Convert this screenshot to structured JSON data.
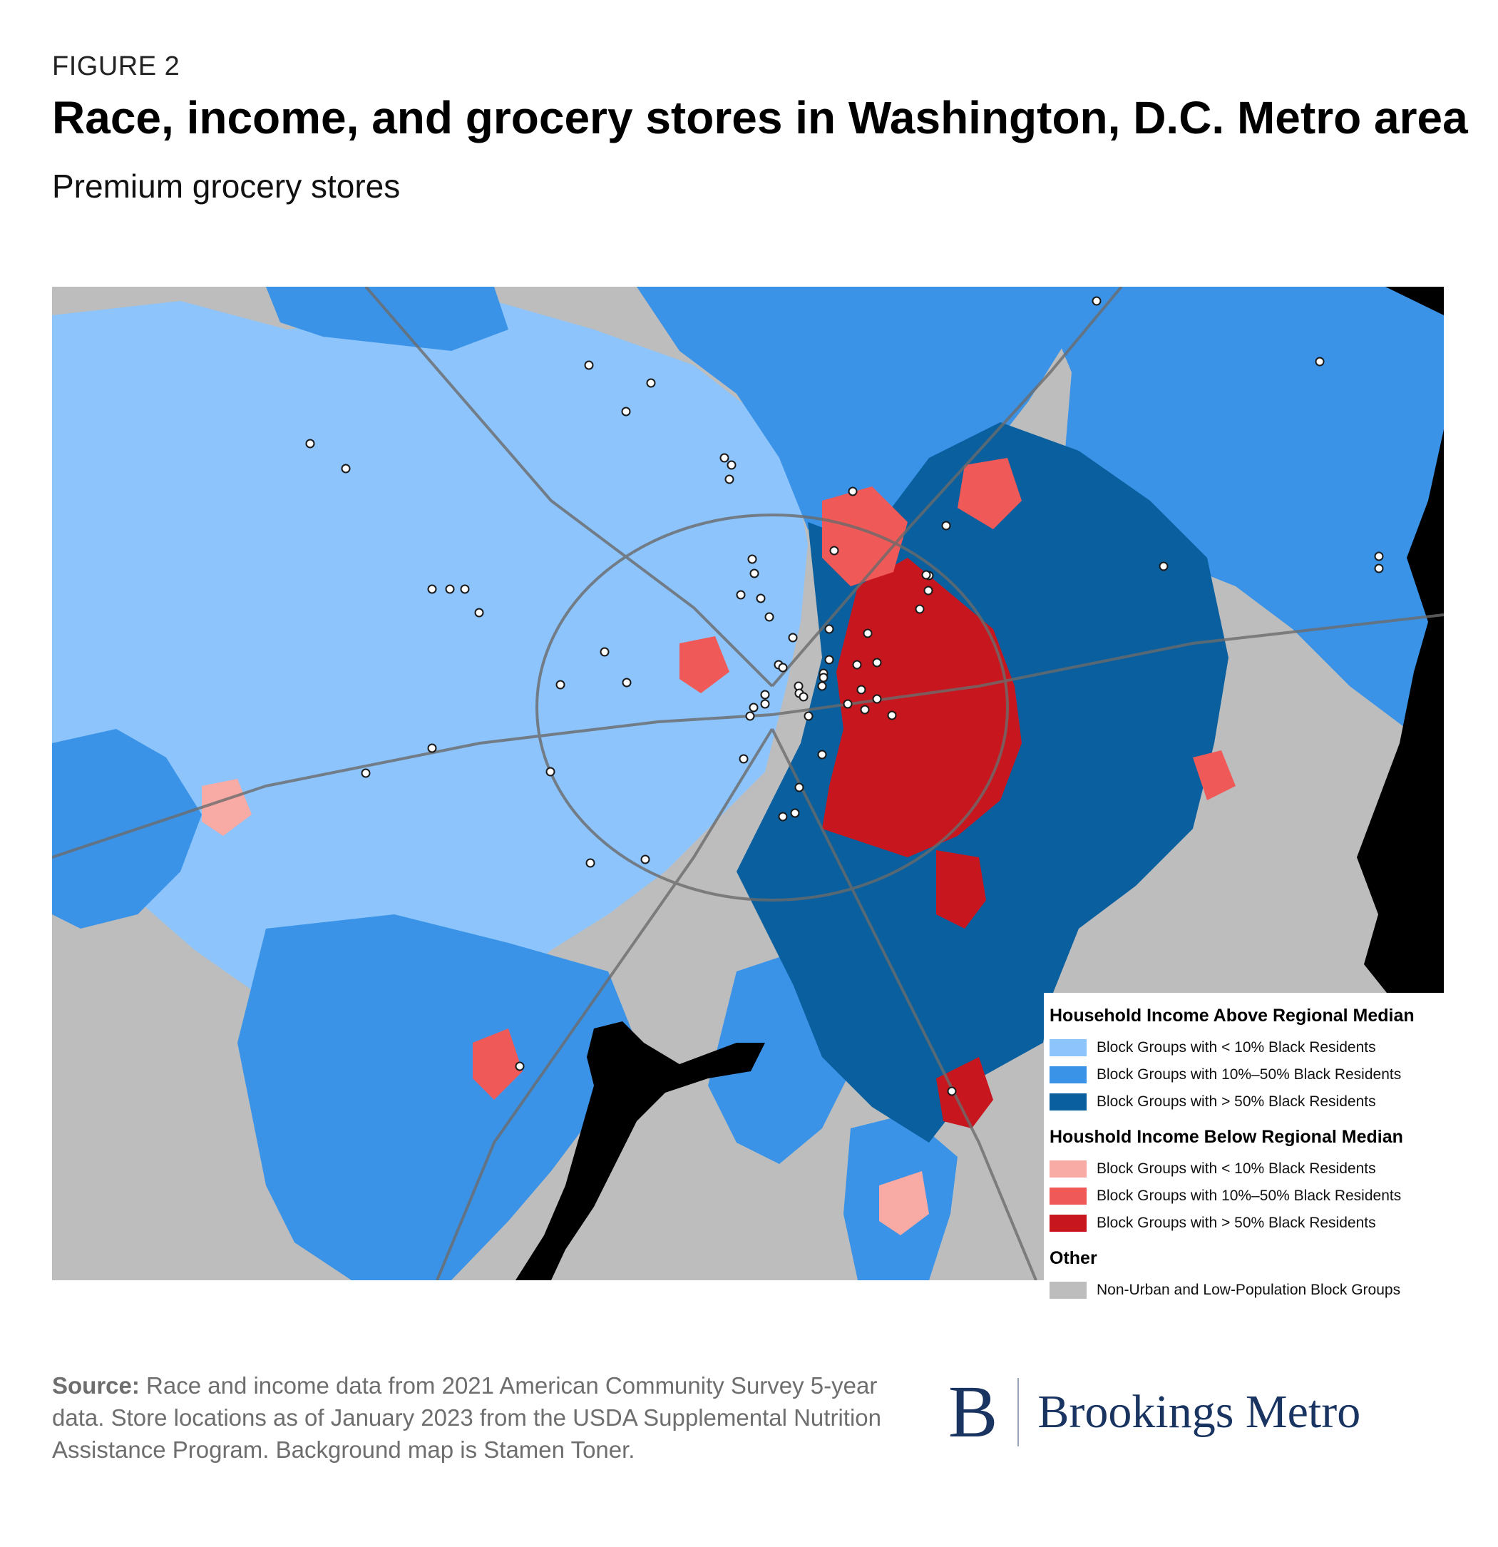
{
  "figure_label": "FIGURE 2",
  "title": "Race, income, and grocery stores in Washington, D.C. Metro area",
  "subtitle": "Premium grocery stores",
  "colors": {
    "above_lt10": "#8cc4fb",
    "above_10_50": "#3a93e6",
    "above_gt50": "#0a5f9e",
    "below_lt10": "#f8aaa4",
    "below_10_50": "#ef5a58",
    "below_gt50": "#c8161e",
    "non_urban": "#bdbdbd",
    "water": "#000000",
    "brand": "#1a3462"
  },
  "legend": {
    "above_heading": "Household Income Above Regional Median",
    "above_items": [
      {
        "label": "Block Groups with < 10% Black Residents",
        "color": "#8cc4fb"
      },
      {
        "label": "Block Groups with 10%–50% Black Residents",
        "color": "#3a93e6"
      },
      {
        "label": "Block Groups with > 50% Black Residents",
        "color": "#0a5f9e"
      }
    ],
    "below_heading": "Houshold Income Below Regional Median",
    "below_items": [
      {
        "label": "Block Groups with < 10% Black Residents",
        "color": "#f8aaa4"
      },
      {
        "label": "Block Groups with 10%–50% Black Residents",
        "color": "#ef5a58"
      },
      {
        "label": "Block Groups with > 50% Black Residents",
        "color": "#c8161e"
      }
    ],
    "other_heading": "Other",
    "other_items": [
      {
        "label": "Non-Urban and Low-Population Block Groups",
        "color": "#bdbdbd"
      }
    ]
  },
  "source_label": "Source:",
  "source_text": " Race and income data from 2021 American Community Survey 5-year data. Store locations as of January 2023 from the USDA Supplemental Nutrition Assistance Program. Background map is Stamen Toner.",
  "logo": {
    "letter": "B",
    "name": "Brookings Metro"
  },
  "store_marker_color": "#ffffff"
}
